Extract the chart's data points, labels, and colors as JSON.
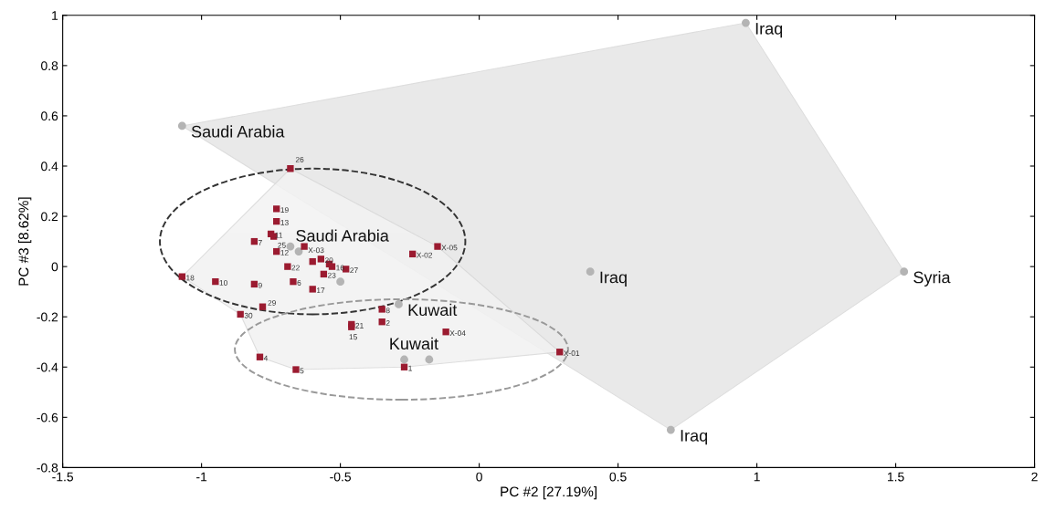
{
  "chart_data": {
    "type": "scatter",
    "xlabel": "PC #2 [27.19%]",
    "ylabel": "PC #3 [8.62%]",
    "xlim": [
      -1.5,
      2
    ],
    "ylim": [
      -0.8,
      1
    ],
    "xticks": [
      -1.5,
      -1,
      -0.5,
      0,
      0.5,
      1,
      1.5,
      2
    ],
    "yticks": [
      -0.8,
      -0.6,
      -0.4,
      -0.2,
      0,
      0.2,
      0.4,
      0.6,
      0.8,
      1
    ],
    "grid": false,
    "legend": false,
    "series": [
      {
        "type": "area",
        "color": "#e6e6e6",
        "x": [
          -1.07,
          0.96,
          1.53,
          0.69,
          -1.07
        ],
        "values": [
          0.56,
          0.97,
          -0.02,
          -0.65,
          0.56
        ]
      },
      {
        "type": "area",
        "color": "#f2f2f2",
        "x": [
          -0.68,
          -0.15,
          0.29,
          -0.27,
          -0.66,
          -0.79,
          -0.86,
          -1.07,
          -0.68
        ],
        "values": [
          0.39,
          0.08,
          -0.34,
          -0.4,
          -0.41,
          -0.36,
          -0.19,
          -0.04,
          0.39
        ]
      },
      {
        "color": "#b4b4b4",
        "marker": "circle",
        "x": [
          -1.07,
          0.96,
          1.53,
          0.69,
          0.4,
          -0.68,
          -0.65,
          -0.5,
          -0.29,
          -0.27,
          -0.18
        ],
        "values": [
          0.56,
          0.97,
          -0.02,
          -0.65,
          -0.02,
          0.08,
          0.06,
          -0.06,
          -0.15,
          -0.37,
          -0.37
        ]
      },
      {
        "color": "#9b1b30",
        "marker": "square",
        "x": [
          -0.68,
          -0.73,
          -0.73,
          -0.75,
          -0.74,
          -0.81,
          -0.63,
          -0.73,
          -0.24,
          -0.15,
          -0.57,
          -0.6,
          -0.54,
          -0.53,
          -0.48,
          -0.56,
          -0.69,
          -0.67,
          -1.07,
          -0.95,
          -0.81,
          -0.6,
          -0.78,
          -0.86,
          -0.35,
          -0.35,
          -0.46,
          -0.46,
          -0.12,
          0.29,
          -0.79,
          -0.66,
          -0.27
        ],
        "values": [
          0.39,
          0.23,
          0.18,
          0.13,
          0.12,
          0.1,
          0.08,
          0.06,
          0.05,
          0.08,
          0.03,
          0.02,
          0.01,
          0.0,
          -0.01,
          -0.03,
          0.0,
          -0.06,
          -0.04,
          -0.06,
          -0.07,
          -0.09,
          -0.16,
          -0.19,
          -0.17,
          -0.22,
          -0.23,
          -0.24,
          -0.26,
          -0.34,
          -0.36,
          -0.41,
          -0.4
        ]
      }
    ],
    "annotations": [
      {
        "text": "Saudi Arabia",
        "x": -1.07,
        "y": 0.56
      },
      {
        "text": "Iraq",
        "x": 0.96,
        "y": 0.97
      },
      {
        "text": "Syria",
        "x": 1.53,
        "y": -0.02
      },
      {
        "text": "Iraq",
        "x": 0.69,
        "y": -0.65
      },
      {
        "text": "Iraq",
        "x": 0.4,
        "y": -0.02
      },
      {
        "text": "Saudi Arabia",
        "x": -0.68,
        "y": 0.08
      },
      {
        "text": "Kuwait",
        "x": -0.29,
        "y": -0.15
      },
      {
        "text": "Kuwait",
        "x": -0.27,
        "y": -0.37
      },
      {
        "text": "26",
        "x": -0.68,
        "y": 0.39
      },
      {
        "text": "19",
        "x": -0.73,
        "y": 0.23
      },
      {
        "text": "13",
        "x": -0.73,
        "y": 0.18
      },
      {
        "text": "11",
        "x": -0.75,
        "y": 0.13
      },
      {
        "text": "25",
        "x": -0.74,
        "y": 0.12
      },
      {
        "text": "7",
        "x": -0.81,
        "y": 0.1
      },
      {
        "text": "X-03",
        "x": -0.63,
        "y": 0.08
      },
      {
        "text": "12",
        "x": -0.73,
        "y": 0.06
      },
      {
        "text": "X-02",
        "x": -0.24,
        "y": 0.05
      },
      {
        "text": "X-05",
        "x": -0.15,
        "y": 0.08
      },
      {
        "text": "20",
        "x": -0.57,
        "y": 0.03
      },
      {
        "text": "16",
        "x": -0.53,
        "y": 0.0
      },
      {
        "text": "27",
        "x": -0.48,
        "y": -0.01
      },
      {
        "text": "23",
        "x": -0.56,
        "y": -0.03
      },
      {
        "text": "22",
        "x": -0.69,
        "y": 0.0
      },
      {
        "text": "6",
        "x": -0.67,
        "y": -0.06
      },
      {
        "text": "18",
        "x": -1.07,
        "y": -0.04
      },
      {
        "text": "10",
        "x": -0.95,
        "y": -0.06
      },
      {
        "text": "9",
        "x": -0.81,
        "y": -0.07
      },
      {
        "text": "17",
        "x": -0.6,
        "y": -0.09
      },
      {
        "text": "29",
        "x": -0.78,
        "y": -0.16
      },
      {
        "text": "30",
        "x": -0.86,
        "y": -0.19
      },
      {
        "text": "8",
        "x": -0.35,
        "y": -0.17
      },
      {
        "text": "2",
        "x": -0.35,
        "y": -0.22
      },
      {
        "text": "21",
        "x": -0.46,
        "y": -0.23
      },
      {
        "text": "15",
        "x": -0.46,
        "y": -0.24
      },
      {
        "text": "X-04",
        "x": -0.12,
        "y": -0.26
      },
      {
        "text": "X-01",
        "x": 0.29,
        "y": -0.34
      },
      {
        "text": "4",
        "x": -0.79,
        "y": -0.36
      },
      {
        "text": "5",
        "x": -0.66,
        "y": -0.41
      },
      {
        "text": "1",
        "x": -0.27,
        "y": -0.4
      }
    ]
  }
}
